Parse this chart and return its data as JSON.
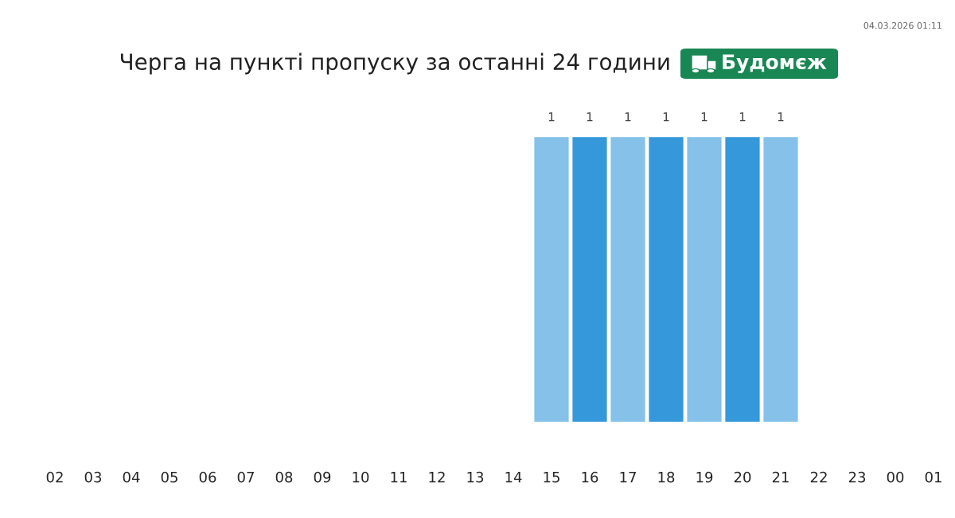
{
  "chart_data": {
    "type": "bar",
    "title": "Черга на пункті пропуску за останні 24 години",
    "annotations": [
      "Будомєж",
      "04.03.2026 01:11"
    ],
    "categories": [
      "02",
      "03",
      "04",
      "05",
      "06",
      "07",
      "08",
      "09",
      "10",
      "11",
      "12",
      "13",
      "14",
      "15",
      "16",
      "17",
      "18",
      "19",
      "20",
      "21",
      "22",
      "23",
      "00",
      "01"
    ],
    "values": [
      null,
      null,
      null,
      null,
      null,
      null,
      null,
      null,
      null,
      null,
      null,
      null,
      null,
      1,
      1,
      1,
      1,
      1,
      1,
      1,
      null,
      null,
      null,
      null
    ],
    "data_labels": true,
    "colors": [
      "#85c1e9",
      "#3498db",
      "#85c1e9",
      "#3498db",
      "#85c1e9",
      "#3498db",
      "#85c1e9",
      "#3498db",
      "#85c1e9",
      "#3498db",
      "#85c1e9",
      "#3498db",
      "#85c1e9",
      "#85c1e9",
      "#3498db",
      "#85c1e9",
      "#3498db",
      "#85c1e9",
      "#3498db",
      "#85c1e9",
      "#3498db",
      "#85c1e9",
      "#3498db",
      "#85c1e9"
    ],
    "grid": false,
    "legend": false
  }
}
